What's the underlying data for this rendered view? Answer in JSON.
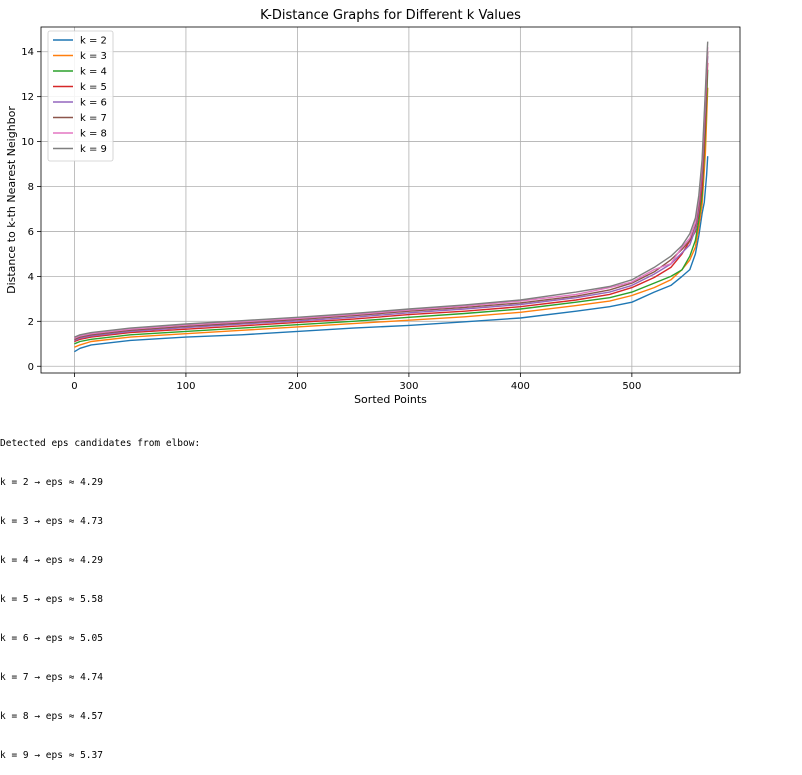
{
  "chart_data": {
    "type": "line",
    "title": "K-Distance Graphs for Different k Values",
    "xlabel": "Sorted Points",
    "ylabel": "Distance to k-th Nearest Neighbor",
    "xlim": [
      -30,
      597
    ],
    "ylim": [
      -0.3,
      15.1
    ],
    "xticks": [
      0,
      100,
      200,
      300,
      400,
      500
    ],
    "yticks": [
      0,
      2,
      4,
      6,
      8,
      10,
      12,
      14
    ],
    "grid": true,
    "legend_position": "upper-left",
    "series": [
      {
        "name": "k = 2",
        "color": "#1f77b4",
        "points": [
          [
            0,
            0.65
          ],
          [
            5,
            0.8
          ],
          [
            15,
            0.95
          ],
          [
            50,
            1.15
          ],
          [
            100,
            1.3
          ],
          [
            150,
            1.4
          ],
          [
            200,
            1.55
          ],
          [
            250,
            1.7
          ],
          [
            300,
            1.82
          ],
          [
            350,
            1.98
          ],
          [
            400,
            2.15
          ],
          [
            450,
            2.45
          ],
          [
            480,
            2.65
          ],
          [
            500,
            2.85
          ],
          [
            520,
            3.3
          ],
          [
            535,
            3.6
          ],
          [
            545,
            4.0
          ],
          [
            552,
            4.3
          ],
          [
            557,
            5.0
          ],
          [
            560,
            5.8
          ],
          [
            563,
            6.8
          ],
          [
            565,
            7.3
          ],
          [
            567,
            8.5
          ],
          [
            568,
            9.35
          ]
        ]
      },
      {
        "name": "k = 3",
        "color": "#ff7f0e",
        "points": [
          [
            0,
            0.85
          ],
          [
            5,
            0.95
          ],
          [
            15,
            1.1
          ],
          [
            50,
            1.3
          ],
          [
            100,
            1.45
          ],
          [
            150,
            1.6
          ],
          [
            200,
            1.75
          ],
          [
            250,
            1.9
          ],
          [
            300,
            2.05
          ],
          [
            350,
            2.2
          ],
          [
            400,
            2.4
          ],
          [
            450,
            2.7
          ],
          [
            480,
            2.9
          ],
          [
            500,
            3.15
          ],
          [
            520,
            3.5
          ],
          [
            535,
            3.85
          ],
          [
            545,
            4.3
          ],
          [
            552,
            4.73
          ],
          [
            557,
            5.3
          ],
          [
            560,
            6.2
          ],
          [
            563,
            7.2
          ],
          [
            566,
            9.5
          ],
          [
            567,
            11.0
          ],
          [
            568,
            12.4
          ]
        ]
      },
      {
        "name": "k = 4",
        "color": "#2ca02c",
        "points": [
          [
            0,
            1.0
          ],
          [
            5,
            1.1
          ],
          [
            15,
            1.2
          ],
          [
            50,
            1.4
          ],
          [
            100,
            1.55
          ],
          [
            150,
            1.7
          ],
          [
            200,
            1.85
          ],
          [
            250,
            2.0
          ],
          [
            300,
            2.18
          ],
          [
            350,
            2.35
          ],
          [
            400,
            2.55
          ],
          [
            450,
            2.85
          ],
          [
            480,
            3.05
          ],
          [
            500,
            3.3
          ],
          [
            520,
            3.7
          ],
          [
            535,
            4.0
          ],
          [
            545,
            4.29
          ],
          [
            552,
            4.9
          ],
          [
            557,
            5.6
          ],
          [
            560,
            6.5
          ],
          [
            563,
            7.6
          ],
          [
            566,
            10.5
          ],
          [
            567,
            11.8
          ],
          [
            568,
            13.2
          ]
        ]
      },
      {
        "name": "k = 5",
        "color": "#d62728",
        "points": [
          [
            0,
            1.1
          ],
          [
            5,
            1.2
          ],
          [
            15,
            1.3
          ],
          [
            50,
            1.5
          ],
          [
            100,
            1.65
          ],
          [
            150,
            1.8
          ],
          [
            200,
            1.95
          ],
          [
            250,
            2.1
          ],
          [
            300,
            2.3
          ],
          [
            350,
            2.45
          ],
          [
            400,
            2.65
          ],
          [
            450,
            2.95
          ],
          [
            480,
            3.2
          ],
          [
            500,
            3.5
          ],
          [
            520,
            3.95
          ],
          [
            535,
            4.4
          ],
          [
            545,
            5.0
          ],
          [
            552,
            5.58
          ],
          [
            557,
            6.0
          ],
          [
            560,
            6.8
          ],
          [
            563,
            8.0
          ],
          [
            566,
            11.0
          ],
          [
            567,
            12.5
          ],
          [
            568,
            13.5
          ]
        ]
      },
      {
        "name": "k = 6",
        "color": "#9467bd",
        "points": [
          [
            0,
            1.15
          ],
          [
            5,
            1.25
          ],
          [
            15,
            1.35
          ],
          [
            50,
            1.55
          ],
          [
            100,
            1.72
          ],
          [
            150,
            1.88
          ],
          [
            200,
            2.02
          ],
          [
            250,
            2.18
          ],
          [
            300,
            2.38
          ],
          [
            350,
            2.55
          ],
          [
            400,
            2.75
          ],
          [
            450,
            3.05
          ],
          [
            480,
            3.3
          ],
          [
            500,
            3.6
          ],
          [
            520,
            4.1
          ],
          [
            535,
            4.55
          ],
          [
            545,
            5.05
          ],
          [
            552,
            5.4
          ],
          [
            557,
            6.1
          ],
          [
            560,
            7.0
          ],
          [
            563,
            8.5
          ],
          [
            566,
            11.5
          ],
          [
            567,
            12.8
          ],
          [
            568,
            13.8
          ]
        ]
      },
      {
        "name": "k = 7",
        "color": "#8c564b",
        "points": [
          [
            0,
            1.2
          ],
          [
            5,
            1.3
          ],
          [
            15,
            1.4
          ],
          [
            50,
            1.6
          ],
          [
            100,
            1.78
          ],
          [
            150,
            1.93
          ],
          [
            200,
            2.08
          ],
          [
            250,
            2.25
          ],
          [
            300,
            2.45
          ],
          [
            350,
            2.62
          ],
          [
            400,
            2.82
          ],
          [
            450,
            3.12
          ],
          [
            480,
            3.4
          ],
          [
            500,
            3.7
          ],
          [
            520,
            4.2
          ],
          [
            535,
            4.74
          ],
          [
            545,
            5.2
          ],
          [
            552,
            5.6
          ],
          [
            557,
            6.3
          ],
          [
            560,
            7.2
          ],
          [
            563,
            8.8
          ],
          [
            566,
            11.8
          ],
          [
            567,
            13.0
          ],
          [
            568,
            14.0
          ]
        ]
      },
      {
        "name": "k = 8",
        "color": "#e377c2",
        "points": [
          [
            0,
            1.25
          ],
          [
            5,
            1.35
          ],
          [
            15,
            1.45
          ],
          [
            50,
            1.65
          ],
          [
            100,
            1.83
          ],
          [
            150,
            1.98
          ],
          [
            200,
            2.13
          ],
          [
            250,
            2.3
          ],
          [
            300,
            2.5
          ],
          [
            350,
            2.68
          ],
          [
            400,
            2.9
          ],
          [
            450,
            3.2
          ],
          [
            480,
            3.5
          ],
          [
            500,
            3.75
          ],
          [
            520,
            4.3
          ],
          [
            535,
            4.57
          ],
          [
            545,
            5.3
          ],
          [
            552,
            5.7
          ],
          [
            557,
            6.4
          ],
          [
            560,
            7.4
          ],
          [
            563,
            9.0
          ],
          [
            566,
            12.0
          ],
          [
            567,
            13.2
          ],
          [
            568,
            14.2
          ]
        ]
      },
      {
        "name": "k = 9",
        "color": "#7f7f7f",
        "points": [
          [
            0,
            1.3
          ],
          [
            5,
            1.4
          ],
          [
            15,
            1.5
          ],
          [
            50,
            1.7
          ],
          [
            100,
            1.88
          ],
          [
            150,
            2.03
          ],
          [
            200,
            2.18
          ],
          [
            250,
            2.35
          ],
          [
            300,
            2.55
          ],
          [
            350,
            2.73
          ],
          [
            400,
            2.95
          ],
          [
            450,
            3.3
          ],
          [
            480,
            3.55
          ],
          [
            500,
            3.85
          ],
          [
            520,
            4.4
          ],
          [
            535,
            4.9
          ],
          [
            545,
            5.37
          ],
          [
            552,
            5.9
          ],
          [
            557,
            6.6
          ],
          [
            560,
            7.6
          ],
          [
            563,
            9.2
          ],
          [
            566,
            12.3
          ],
          [
            567,
            13.5
          ],
          [
            568,
            14.45
          ]
        ]
      }
    ]
  },
  "output": {
    "heading": "Detected eps candidates from elbow:",
    "lines": [
      "k = 2 → eps ≈ 4.29",
      "k = 3 → eps ≈ 4.73",
      "k = 4 → eps ≈ 4.29",
      "k = 5 → eps ≈ 5.58",
      "k = 6 → eps ≈ 5.05",
      "k = 7 → eps ≈ 4.74",
      "k = 8 → eps ≈ 4.57",
      "k = 9 → eps ≈ 5.37"
    ]
  }
}
